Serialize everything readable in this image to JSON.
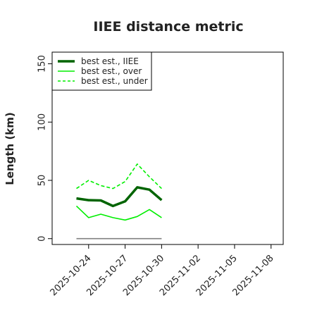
{
  "chart_data": {
    "type": "line",
    "title": "IIEE distance metric",
    "xlabel": "",
    "ylabel": "Length (km)",
    "x": [
      "2025-10-23",
      "2025-10-24",
      "2025-10-25",
      "2025-10-26",
      "2025-10-27",
      "2025-10-28",
      "2025-10-29",
      "2025-10-30"
    ],
    "xlim": [
      "2025-10-21",
      "2025-11-09"
    ],
    "ylim": [
      -5,
      160
    ],
    "xticks": [
      "2025-10-24",
      "2025-10-27",
      "2025-10-30",
      "2025-11-02",
      "2025-11-05",
      "2025-11-08"
    ],
    "yticks": [
      0,
      50,
      100,
      150
    ],
    "grid": false,
    "legend_position": "top-left",
    "series": [
      {
        "name": "best est., IIEE",
        "color": "#006400",
        "style": "solid",
        "width": "thick",
        "values": [
          34.5,
          33,
          32.8,
          28,
          32,
          44,
          42,
          33
        ]
      },
      {
        "name": "best est., over",
        "color": "#00ee00",
        "style": "solid",
        "width": "thin",
        "values": [
          28,
          18,
          21,
          18,
          16,
          19,
          25,
          18
        ]
      },
      {
        "name": "best est., under",
        "color": "#00ee00",
        "style": "dashed",
        "width": "thin",
        "values": [
          43,
          50,
          45.5,
          43,
          49,
          64,
          53,
          43
        ]
      },
      {
        "name": "",
        "color": "#808080",
        "style": "solid",
        "width": "thin",
        "values": [
          0,
          0,
          0,
          0,
          0,
          0,
          0,
          0
        ]
      }
    ]
  }
}
